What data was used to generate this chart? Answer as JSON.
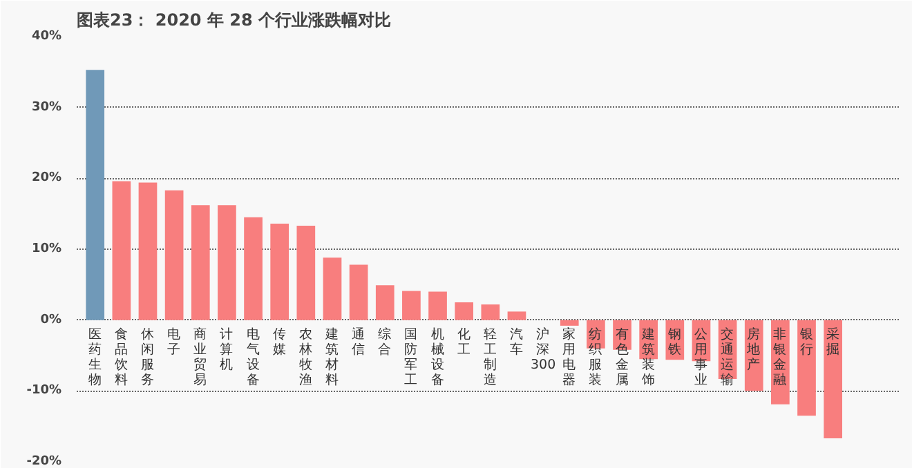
{
  "chart_data": {
    "type": "bar",
    "title": "图表23：  2020 年 28 个行业涨跌幅对比",
    "categories": [
      "医药生物",
      "食品饮料",
      "休闲服务",
      "电子",
      "商业贸易",
      "计算机",
      "电气设备",
      "传媒",
      "农林牧渔",
      "建筑材料",
      "通信",
      "综合",
      "国防军工",
      "机械设备",
      "化工",
      "轻工制造",
      "汽车",
      "沪深300",
      "家用电器",
      "纺织服装",
      "有色金属",
      "建筑装饰",
      "钢铁",
      "公用事业",
      "交通运输",
      "房地产",
      "非银金融",
      "银行",
      "采掘"
    ],
    "values": [
      35.3,
      19.6,
      19.4,
      18.3,
      16.2,
      16.2,
      14.5,
      13.6,
      13.3,
      8.8,
      7.8,
      4.9,
      4.1,
      4.0,
      2.5,
      2.2,
      1.2,
      0,
      -0.8,
      -4.0,
      -4.2,
      -5.5,
      -5.6,
      -5.8,
      -8.3,
      -10.0,
      -11.9,
      -13.5,
      -16.7
    ],
    "colors": [
      "#7099b8",
      "#f87e7e",
      "#f87e7e",
      "#f87e7e",
      "#f87e7e",
      "#f87e7e",
      "#f87e7e",
      "#f87e7e",
      "#f87e7e",
      "#f87e7e",
      "#f87e7e",
      "#f87e7e",
      "#f87e7e",
      "#f87e7e",
      "#f87e7e",
      "#f87e7e",
      "#f87e7e",
      "#f87e7e",
      "#f87e7e",
      "#f87e7e",
      "#f87e7e",
      "#f87e7e",
      "#f87e7e",
      "#f87e7e",
      "#f87e7e",
      "#f87e7e",
      "#f87e7e",
      "#f87e7e",
      "#f87e7e"
    ],
    "ylim": [
      -20,
      40
    ],
    "yticks": [
      {
        "value": -20,
        "label": "-20%"
      },
      {
        "value": -10,
        "label": "-10%"
      },
      {
        "value": 0,
        "label": "0%"
      },
      {
        "value": 10,
        "label": "10%"
      },
      {
        "value": 20,
        "label": "20%"
      },
      {
        "value": 30,
        "label": "30%"
      },
      {
        "value": 40,
        "label": "40%"
      }
    ],
    "grid": "y"
  }
}
